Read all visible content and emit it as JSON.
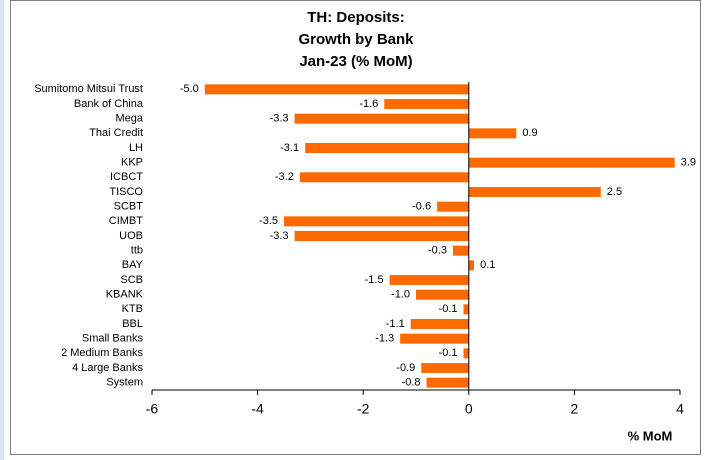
{
  "chart_data": {
    "type": "barh",
    "title": [
      "TH: Deposits:",
      "Growth by Bank",
      "Jan-23 (% MoM)"
    ],
    "x_label": "% MoM",
    "categories": [
      "Sumitomo Mitsui Trust",
      "Bank of China",
      "Mega",
      "Thai Credit",
      "LH",
      "KKP",
      "ICBCT",
      "TISCO",
      "SCBT",
      "CIMBT",
      "UOB",
      "ttb",
      "BAY",
      "SCB",
      "KBANK",
      "KTB",
      "BBL",
      "Small Banks",
      "2 Medium Banks",
      "4 Large Banks",
      "System"
    ],
    "values": [
      -5.0,
      -1.6,
      -3.3,
      0.9,
      -3.1,
      3.9,
      -3.2,
      2.5,
      -0.6,
      -3.5,
      -3.3,
      -0.3,
      0.1,
      -1.5,
      -1.0,
      -0.1,
      -1.1,
      -1.3,
      -0.1,
      -0.9,
      -0.8
    ],
    "value_labels": [
      "-5.0",
      "-1.6",
      "-3.3",
      "0.9",
      "-3.1",
      "3.9",
      "-3.2",
      "2.5",
      "-0.6",
      "-3.5",
      "-3.3",
      "-0.3",
      "0.1",
      "-1.5",
      "-1.0",
      "-0.1",
      "-1.1",
      "-1.3",
      "-0.1",
      "-0.9",
      "-0.8"
    ],
    "color": "#ff6a00",
    "xlim": [
      -6,
      4
    ],
    "xticks": [
      -6,
      -4,
      -2,
      0,
      2,
      4
    ]
  }
}
